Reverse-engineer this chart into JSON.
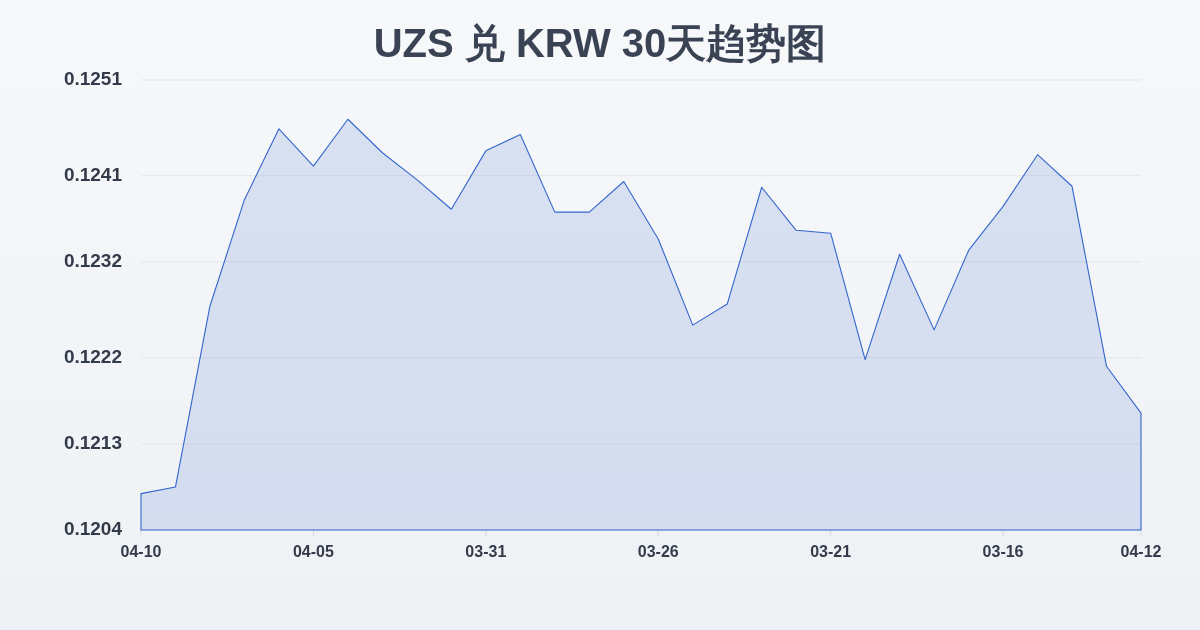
{
  "chart_data": {
    "type": "area",
    "title": "UZS 兑 KRW 30天趋势图",
    "categories": [
      "04-10",
      null,
      null,
      null,
      null,
      "04-05",
      null,
      null,
      null,
      null,
      "03-31",
      null,
      null,
      null,
      null,
      "03-26",
      null,
      null,
      null,
      null,
      "03-21",
      null,
      null,
      null,
      null,
      "03-16",
      null,
      null,
      null,
      "04-12"
    ],
    "values": [
      0.12078,
      0.12085,
      0.12274,
      0.12385,
      0.12459,
      0.1242,
      0.12469,
      0.12434,
      0.12406,
      0.12375,
      0.12436,
      0.12453,
      0.12372,
      0.12372,
      0.12404,
      0.12344,
      0.12254,
      0.12276,
      0.12398,
      0.12353,
      0.1235,
      0.12218,
      0.12328,
      0.12249,
      0.12332,
      0.12378,
      0.12432,
      0.12399,
      0.12211,
      0.12162
    ],
    "color": "#3366cc",
    "ylim": [
      0.1204,
      0.1251
    ],
    "yticks": [
      0.1204,
      0.1213,
      0.1222,
      0.1232,
      0.1241,
      0.1251
    ],
    "grid": "y"
  }
}
